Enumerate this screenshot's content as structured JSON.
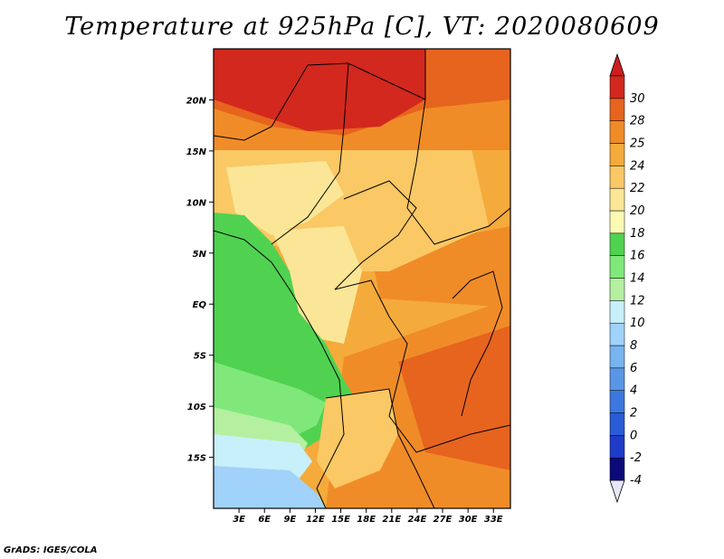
{
  "title": "Temperature at 925hPa [C], VT: 2020080609",
  "footer": "GrADS: IGES/COLA",
  "map": {
    "lon_range": [
      0,
      35
    ],
    "lat_range": [
      -20,
      25
    ],
    "lat_ticks": [
      {
        "value": 20,
        "label": "20N"
      },
      {
        "value": 15,
        "label": "15N"
      },
      {
        "value": 10,
        "label": "10N"
      },
      {
        "value": 5,
        "label": "5N"
      },
      {
        "value": 0,
        "label": "EQ"
      },
      {
        "value": -5,
        "label": "5S"
      },
      {
        "value": -10,
        "label": "10S"
      },
      {
        "value": -15,
        "label": "15S"
      }
    ],
    "lon_ticks": [
      {
        "value": 3,
        "label": "3E"
      },
      {
        "value": 6,
        "label": "6E"
      },
      {
        "value": 9,
        "label": "9E"
      },
      {
        "value": 12,
        "label": "12E"
      },
      {
        "value": 15,
        "label": "15E"
      },
      {
        "value": 18,
        "label": "18E"
      },
      {
        "value": 21,
        "label": "21E"
      },
      {
        "value": 24,
        "label": "24E"
      },
      {
        "value": 27,
        "label": "27E"
      },
      {
        "value": 30,
        "label": "30E"
      },
      {
        "value": 33,
        "label": "33E"
      }
    ]
  },
  "colorbar": {
    "colors": [
      "#0a0a7a",
      "#1e3cc8",
      "#2a5cd8",
      "#3c78e0",
      "#5a96e6",
      "#78b4f0",
      "#a0d2fa",
      "#c8f0fa",
      "#b4f0a0",
      "#80e87a",
      "#50d250",
      "#fafab4",
      "#fae696",
      "#fac864",
      "#f5aa3c",
      "#f08c28",
      "#e6641e",
      "#d2281e"
    ],
    "labels": [
      "-4",
      "-2",
      "0",
      "2",
      "4",
      "6",
      "8",
      "10",
      "12",
      "14",
      "16",
      "18",
      "20",
      "22",
      "24",
      "25",
      "28",
      "30"
    ],
    "under_color": "#e6e6fa",
    "over_color": "#cd1e1e"
  }
}
